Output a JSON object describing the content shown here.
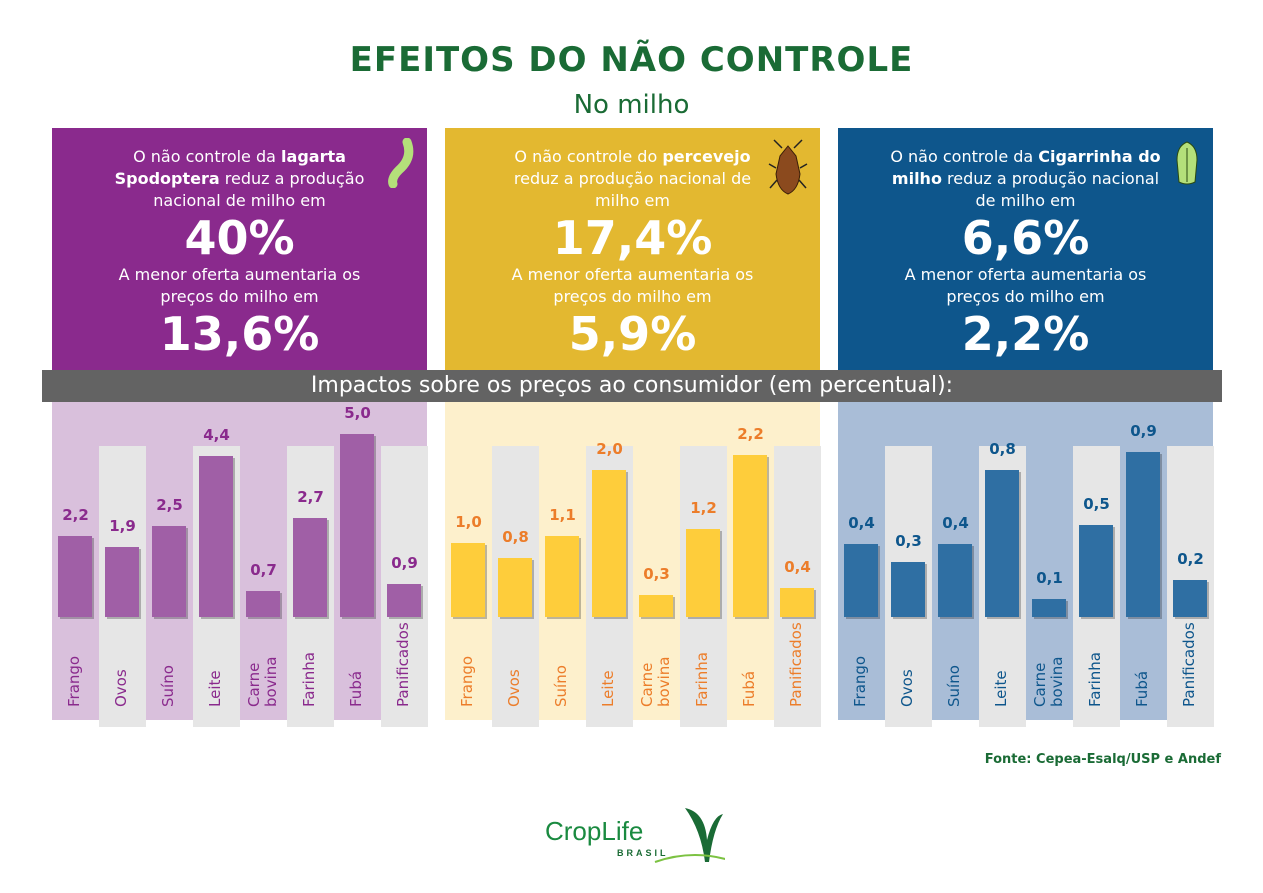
{
  "header": {
    "title": "EFEITOS DO NÃO CONTROLE",
    "subtitle": "No milho"
  },
  "band": "Impactos sobre os preços ao consumidor (em percentual):",
  "panels": [
    {
      "color": "#8a2a8d",
      "bg": "#d9c0dc",
      "bar": "#a05fa6",
      "text": "#8a2a8d",
      "icon": "caterpillar-icon",
      "intro_pre": "O não controle da ",
      "intro_bold": "lagarta Spodoptera",
      "intro_post": " reduz a produção nacional de milho em",
      "reduction": "40%",
      "prices_text": "A menor oferta aumentaria os preços do milho em",
      "price_increase": "13,6%"
    },
    {
      "color": "#e3b830",
      "bg": "#fdf0cc",
      "bar": "#fecd3b",
      "text": "#ec7d2a",
      "icon": "stink-bug-icon",
      "intro_pre": "O não controle do ",
      "intro_bold": "percevejo",
      "intro_post": " reduz a produção nacional de milho em",
      "reduction": "17,4%",
      "prices_text": "A menor oferta aumentaria os preços do milho em",
      "price_increase": "5,9%"
    },
    {
      "color": "#0e568c",
      "bg": "#a9bdd7",
      "bar": "#2f6fa3",
      "text": "#0e568c",
      "icon": "leafhopper-icon",
      "intro_pre": "O não controle da ",
      "intro_bold": "Cigarrinha do milho",
      "intro_post": " reduz a produção nacional de milho em",
      "reduction": "6,6%",
      "prices_text": "A menor oferta aumentaria os preços do milho em",
      "price_increase": "2,2%"
    }
  ],
  "chart_data": [
    {
      "type": "bar",
      "categories": [
        "Frango",
        "Ovos",
        "Suíno",
        "Leite",
        "Carne bovina",
        "Farinha",
        "Fubá",
        "Panificados"
      ],
      "values": [
        2.2,
        1.9,
        2.5,
        4.4,
        0.7,
        2.7,
        5.0,
        0.9
      ],
      "labels": [
        "2,2",
        "1,9",
        "2,5",
        "4,4",
        "0,7",
        "2,7",
        "5,0",
        "0,9"
      ]
    },
    {
      "type": "bar",
      "categories": [
        "Frango",
        "Ovos",
        "Suíno",
        "Leite",
        "Carne bovina",
        "Farinha",
        "Fubá",
        "Panificados"
      ],
      "values": [
        1.0,
        0.8,
        1.1,
        2.0,
        0.3,
        1.2,
        2.2,
        0.4
      ],
      "labels": [
        "1,0",
        "0,8",
        "1,1",
        "2,0",
        "0,3",
        "1,2",
        "2,2",
        "0,4"
      ]
    },
    {
      "type": "bar",
      "categories": [
        "Frango",
        "Ovos",
        "Suíno",
        "Leite",
        "Carne bovina",
        "Farinha",
        "Fubá",
        "Panificados"
      ],
      "values": [
        0.4,
        0.3,
        0.4,
        0.8,
        0.1,
        0.5,
        0.9,
        0.2
      ],
      "labels": [
        "0,4",
        "0,3",
        "0,4",
        "0,8",
        "0,1",
        "0,5",
        "0,9",
        "0,2"
      ]
    }
  ],
  "source": "Fonte: Cepea-Esalq/USP e Andef",
  "logo": {
    "name": "CropLife",
    "sub": "BRASIL"
  }
}
